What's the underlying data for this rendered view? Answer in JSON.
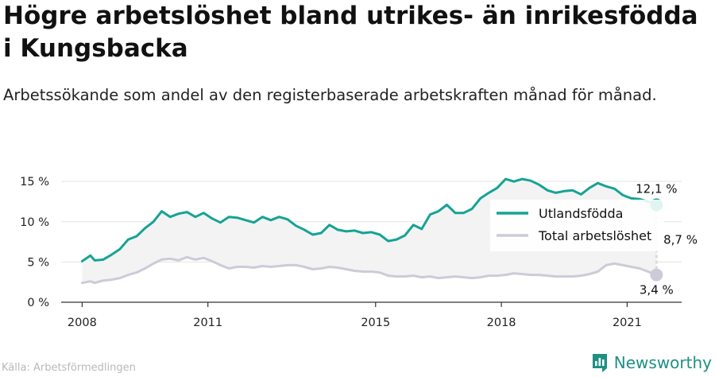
{
  "title": "Högre arbetslöshet bland utrikes- än inrikesfödda i Kungsbacka",
  "subtitle": "Arbetssökande som andel av den registerbaserade arbetskraften månad för månad.",
  "source": "Källa: Arbetsförmedlingen",
  "brand": "Newsworthy",
  "colors": {
    "utlandsfodda": "#16a394",
    "total": "#cdcbd8",
    "band": "#f3f3f3",
    "grid": "#e3e3e3",
    "brand": "#1f8f84"
  },
  "chart_data": {
    "type": "line",
    "ylim": [
      0,
      16.5
    ],
    "xlim": [
      2007.5,
      2022.3
    ],
    "y_ticks": [
      0,
      5,
      10,
      15
    ],
    "y_tick_labels": [
      "0 %",
      "5 %",
      "10 %",
      "15 %"
    ],
    "x_ticks": [
      2008,
      2011,
      2015,
      2018,
      2021
    ],
    "x_tick_labels": [
      "2008",
      "2011",
      "2015",
      "2018",
      "2021"
    ],
    "legend_position": "right",
    "grid": true,
    "series": [
      {
        "name": "Utlandsfödda",
        "end_label": "12,1 %",
        "x": [
          2008.0,
          2008.2,
          2008.3,
          2008.5,
          2008.7,
          2008.9,
          2009.1,
          2009.3,
          2009.5,
          2009.7,
          2009.9,
          2010.1,
          2010.3,
          2010.5,
          2010.7,
          2010.9,
          2011.1,
          2011.3,
          2011.5,
          2011.7,
          2011.9,
          2012.1,
          2012.3,
          2012.5,
          2012.7,
          2012.9,
          2013.1,
          2013.3,
          2013.5,
          2013.7,
          2013.9,
          2014.1,
          2014.3,
          2014.5,
          2014.7,
          2014.9,
          2015.1,
          2015.3,
          2015.5,
          2015.7,
          2015.9,
          2016.1,
          2016.3,
          2016.5,
          2016.7,
          2016.9,
          2017.1,
          2017.3,
          2017.5,
          2017.7,
          2017.9,
          2018.1,
          2018.3,
          2018.5,
          2018.7,
          2018.9,
          2019.1,
          2019.3,
          2019.5,
          2019.7,
          2019.9,
          2020.1,
          2020.3,
          2020.5,
          2020.7,
          2020.9,
          2021.1,
          2021.3,
          2021.5,
          2021.7
        ],
        "values": [
          5.1,
          5.8,
          5.2,
          5.3,
          5.9,
          6.6,
          7.8,
          8.2,
          9.2,
          10.0,
          11.3,
          10.6,
          11.0,
          11.2,
          10.6,
          11.1,
          10.4,
          9.9,
          10.6,
          10.5,
          10.2,
          9.9,
          10.6,
          10.2,
          10.6,
          10.3,
          9.5,
          9.0,
          8.4,
          8.6,
          9.6,
          9.0,
          8.8,
          8.9,
          8.6,
          8.7,
          8.4,
          7.6,
          7.8,
          8.3,
          9.6,
          9.1,
          10.9,
          11.3,
          12.1,
          11.1,
          11.1,
          11.6,
          12.9,
          13.6,
          14.2,
          15.3,
          15.0,
          15.3,
          15.1,
          14.6,
          13.9,
          13.6,
          13.8,
          13.9,
          13.4,
          14.2,
          14.8,
          14.4,
          14.1,
          13.3,
          12.9,
          12.8,
          12.5,
          12.1
        ]
      },
      {
        "name": "Total arbetslöshet",
        "end_label": "3,4 %",
        "x": [
          2008.0,
          2008.2,
          2008.3,
          2008.5,
          2008.7,
          2008.9,
          2009.1,
          2009.3,
          2009.5,
          2009.7,
          2009.9,
          2010.1,
          2010.3,
          2010.5,
          2010.7,
          2010.9,
          2011.1,
          2011.3,
          2011.5,
          2011.7,
          2011.9,
          2012.1,
          2012.3,
          2012.5,
          2012.7,
          2012.9,
          2013.1,
          2013.3,
          2013.5,
          2013.7,
          2013.9,
          2014.1,
          2014.3,
          2014.5,
          2014.7,
          2014.9,
          2015.1,
          2015.3,
          2015.5,
          2015.7,
          2015.9,
          2016.1,
          2016.3,
          2016.5,
          2016.7,
          2016.9,
          2017.1,
          2017.3,
          2017.5,
          2017.7,
          2017.9,
          2018.1,
          2018.3,
          2018.5,
          2018.7,
          2018.9,
          2019.1,
          2019.3,
          2019.5,
          2019.7,
          2019.9,
          2020.1,
          2020.3,
          2020.5,
          2020.7,
          2020.9,
          2021.1,
          2021.3,
          2021.5,
          2021.7
        ],
        "values": [
          2.4,
          2.6,
          2.4,
          2.7,
          2.8,
          3.0,
          3.4,
          3.7,
          4.2,
          4.8,
          5.3,
          5.4,
          5.2,
          5.6,
          5.3,
          5.5,
          5.1,
          4.6,
          4.2,
          4.4,
          4.4,
          4.3,
          4.5,
          4.4,
          4.5,
          4.6,
          4.6,
          4.4,
          4.1,
          4.2,
          4.4,
          4.3,
          4.1,
          3.9,
          3.8,
          3.8,
          3.7,
          3.3,
          3.2,
          3.2,
          3.3,
          3.1,
          3.2,
          3.0,
          3.1,
          3.2,
          3.1,
          3.0,
          3.1,
          3.3,
          3.3,
          3.4,
          3.6,
          3.5,
          3.4,
          3.4,
          3.3,
          3.2,
          3.2,
          3.2,
          3.3,
          3.5,
          3.8,
          4.6,
          4.8,
          4.6,
          4.4,
          4.2,
          3.8,
          3.4
        ]
      }
    ],
    "gap_label": "8,7 %"
  }
}
